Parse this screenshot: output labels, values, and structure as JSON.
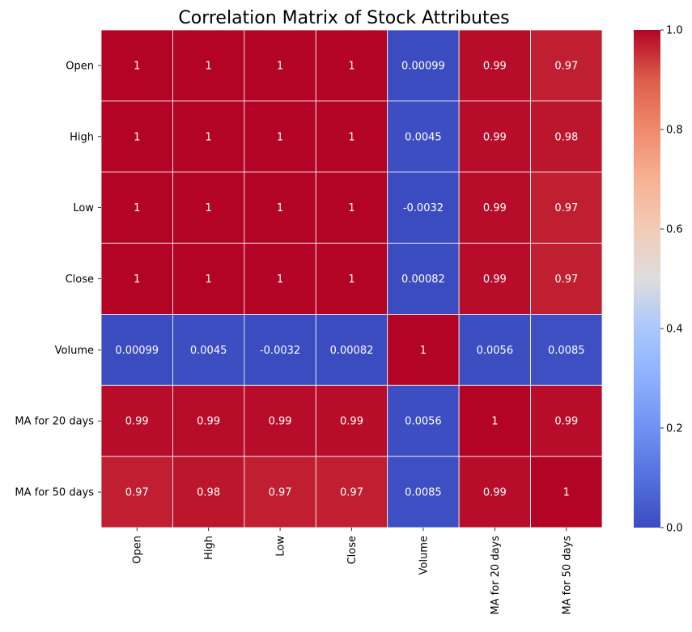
{
  "chart_data": {
    "type": "heatmap",
    "title": "Correlation Matrix of Stock Attributes",
    "xlabel": "",
    "ylabel": "",
    "x_categories": [
      "Open",
      "High",
      "Low",
      "Close",
      "Volume",
      "MA for 20 days",
      "MA for 50 days"
    ],
    "y_categories": [
      "Open",
      "High",
      "Low",
      "Close",
      "Volume",
      "MA for 20 days",
      "MA for 50 days"
    ],
    "values": [
      [
        1,
        1,
        1,
        1,
        0.00099,
        0.99,
        0.97
      ],
      [
        1,
        1,
        1,
        1,
        0.0045,
        0.99,
        0.98
      ],
      [
        1,
        1,
        1,
        1,
        -0.0032,
        0.99,
        0.97
      ],
      [
        1,
        1,
        1,
        1,
        0.00082,
        0.99,
        0.97
      ],
      [
        0.00099,
        0.0045,
        -0.0032,
        0.00082,
        1,
        0.0056,
        0.0085
      ],
      [
        0.99,
        0.99,
        0.99,
        0.99,
        0.0056,
        1,
        0.99
      ],
      [
        0.97,
        0.98,
        0.97,
        0.97,
        0.0085,
        0.99,
        1
      ]
    ],
    "annotations": [
      [
        "1",
        "1",
        "1",
        "1",
        "0.00099",
        "0.99",
        "0.97"
      ],
      [
        "1",
        "1",
        "1",
        "1",
        "0.0045",
        "0.99",
        "0.98"
      ],
      [
        "1",
        "1",
        "1",
        "1",
        "-0.0032",
        "0.99",
        "0.97"
      ],
      [
        "1",
        "1",
        "1",
        "1",
        "0.00082",
        "0.99",
        "0.97"
      ],
      [
        "0.00099",
        "0.0045",
        "-0.0032",
        "0.00082",
        "1",
        "0.0056",
        "0.0085"
      ],
      [
        "0.99",
        "0.99",
        "0.99",
        "0.99",
        "0.0056",
        "1",
        "0.99"
      ],
      [
        "0.97",
        "0.98",
        "0.97",
        "0.97",
        "0.0085",
        "0.99",
        "1"
      ]
    ],
    "colormap": "coolwarm",
    "colorbar": {
      "range": [
        0.0,
        1.0
      ],
      "ticks": [
        "0.0",
        "0.2",
        "0.4",
        "0.6",
        "0.8",
        "1.0"
      ]
    },
    "annotation_color": "#ffffff",
    "cell_border_color": "#ffffff",
    "grid": false
  }
}
